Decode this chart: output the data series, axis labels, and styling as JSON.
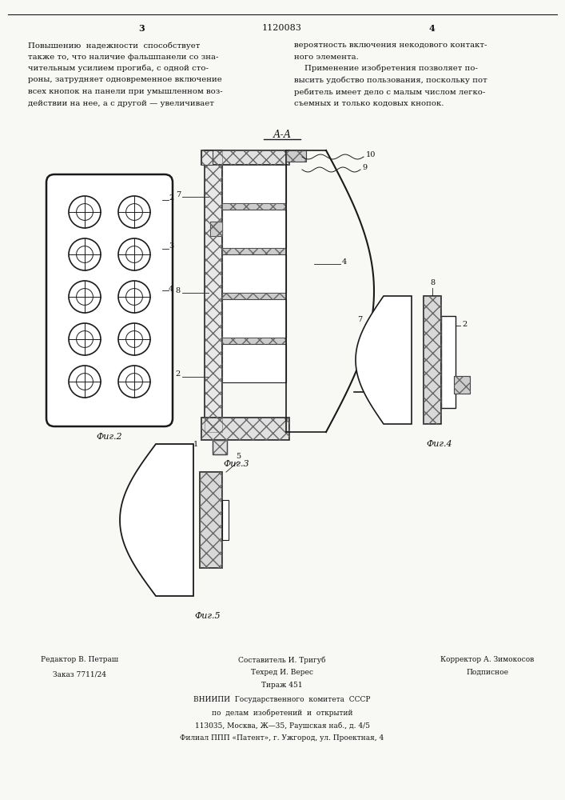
{
  "bg_color": "#f8f8f5",
  "page_width": 7.07,
  "page_height": 10.0,
  "page_num_left": "3",
  "patent_number": "1120083",
  "page_num_right": "4",
  "text_left": [
    "Повышению  надежности  способствует",
    "также то, что наличие фальшпанели со зна-",
    "чительным усилием прогиба, с одной сто-",
    "роны, затрудняет одновременное включение",
    "всех кнопок на панели при умышленном воз-",
    "действии на нее, а с другой — увеличивает"
  ],
  "text_right": [
    "вероятность включения некодового контакт-",
    "ного элемента.",
    "    Применение изобретения позволяет по-",
    "высить удобство пользования, поскольку пот",
    "ребитель имеет дело с малым числом легко-",
    "съемных и только кодовых кнопок."
  ],
  "section_label_aa": "А-А",
  "fig2_label": "Фиг.2",
  "fig3_label": "Фиг.3",
  "fig4_label": "Фиг.4",
  "fig5_label": "Фиг.5",
  "footer_editor": "Редактор В. Петраш",
  "footer_order": "Заказ 7711/24",
  "footer_composer": "Составитель И. Тригуб",
  "footer_tirazh": "Тираж 451",
  "footer_corrector": "Корректор А. Зимокосов",
  "footer_podpisnoe": "Подписное",
  "footer_tehred": "Техред И. Верес",
  "footer_vniipi": "ВНИИПИ  Государственного  комитета  СССР",
  "footer_po_delam": "по  делам  изобретений  и  открытий",
  "footer_address": "113035, Москва, Ж—35, Раушская наб., д. 4/5",
  "footer_filial": "Филиал ППП «Патент», г. Ужгород, ул. Проектная, 4",
  "line_color": "#1a1a1a",
  "text_color": "#111111"
}
